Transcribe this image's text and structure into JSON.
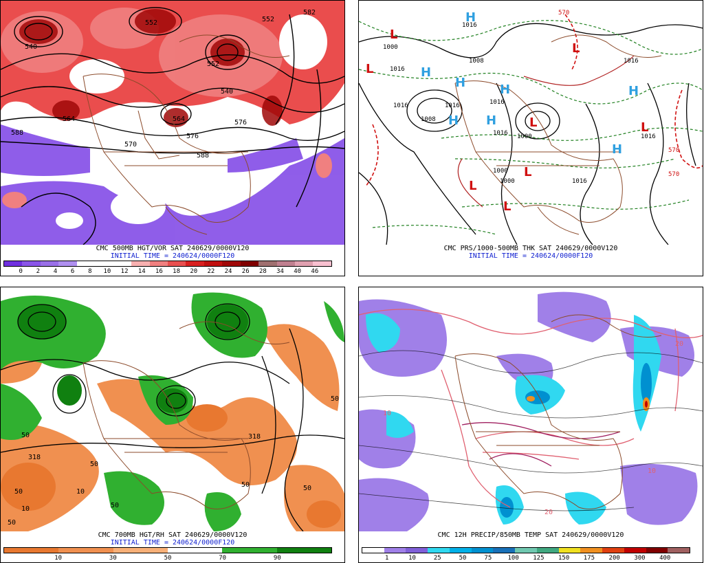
{
  "panels": [
    {
      "caption": "CMC 500MB HGT/VOR SAT 240629/0000V120",
      "initial_time": "INITIAL TIME = 240624/0000F120",
      "colorbar": {
        "colors": [
          "#7030e0",
          "#8a55e8",
          "#9a70e8",
          "#b090f0",
          "#ffffff",
          "#ffffff",
          "#ffffff",
          "#f8b0b0",
          "#f08080",
          "#e85050",
          "#d82020",
          "#c01010",
          "#a00808",
          "#800000",
          "#a07070",
          "#c08090",
          "#e0a0b0",
          "#f8c0d0"
        ],
        "ticks": [
          "0",
          "2",
          "4",
          "6",
          "8",
          "10",
          "12",
          "14",
          "16",
          "18",
          "20",
          "22",
          "24",
          "26",
          "28",
          "34",
          "40",
          "46"
        ]
      },
      "contour_labels": [
        "540",
        "552",
        "564",
        "576",
        "588",
        "540",
        "552",
        "564",
        "552",
        "582",
        "576",
        "588",
        "570"
      ]
    },
    {
      "caption": "CMC PRS/1000-500MB THK SAT 240629/0000V120",
      "initial_time": "INITIAL TIME = 240624/0000F120",
      "highs": [
        "H",
        "H",
        "H",
        "H",
        "H",
        "H",
        "H",
        "H"
      ],
      "lows": [
        "L",
        "L",
        "L",
        "L",
        "L",
        "L",
        "L",
        "L"
      ],
      "isobar_labels": [
        "1016",
        "1008",
        "1000",
        "1016",
        "1016",
        "1016",
        "1016",
        "1008",
        "1000",
        "1000",
        "1016",
        "1016",
        "1016",
        "1000",
        "1016"
      ],
      "thickness_labels": [
        "570",
        "570",
        "570"
      ]
    },
    {
      "caption": "CMC 700MB HGT/RH SAT 240629/0000V120",
      "initial_time": "INITIAL TIME = 240624/0000F120",
      "colorbar": {
        "colors": [
          "#e87830",
          "#e87830",
          "#f09050",
          "#f09050",
          "#f8b078",
          "#f8b078",
          "#ffffff",
          "#ffffff",
          "#30b030",
          "#30b030",
          "#108010",
          "#108010"
        ],
        "ticks": [
          "10",
          "30",
          "50",
          "70",
          "90"
        ]
      },
      "contour_labels": [
        "318",
        "50",
        "10",
        "50",
        "50",
        "318",
        "50",
        "50",
        "10",
        "50",
        "50",
        "50"
      ]
    },
    {
      "caption": "CMC 12H PRECIP/850MB TEMP SAT 240629/0000V120",
      "colorbar": {
        "colors": [
          "#ffffff",
          "#a080e8",
          "#8060d8",
          "#30d8f0",
          "#00b0e8",
          "#0090d0",
          "#1870b8",
          "#70c8b0",
          "#40a880",
          "#f0e020",
          "#f09020",
          "#e04010",
          "#c00000",
          "#800000",
          "#a06060"
        ],
        "ticks": [
          "1",
          "10",
          "25",
          "50",
          "75",
          "100",
          "125",
          "150",
          "175",
          "200",
          "300",
          "400"
        ]
      },
      "temp_labels": [
        "10",
        "10",
        "20",
        "20"
      ]
    }
  ]
}
